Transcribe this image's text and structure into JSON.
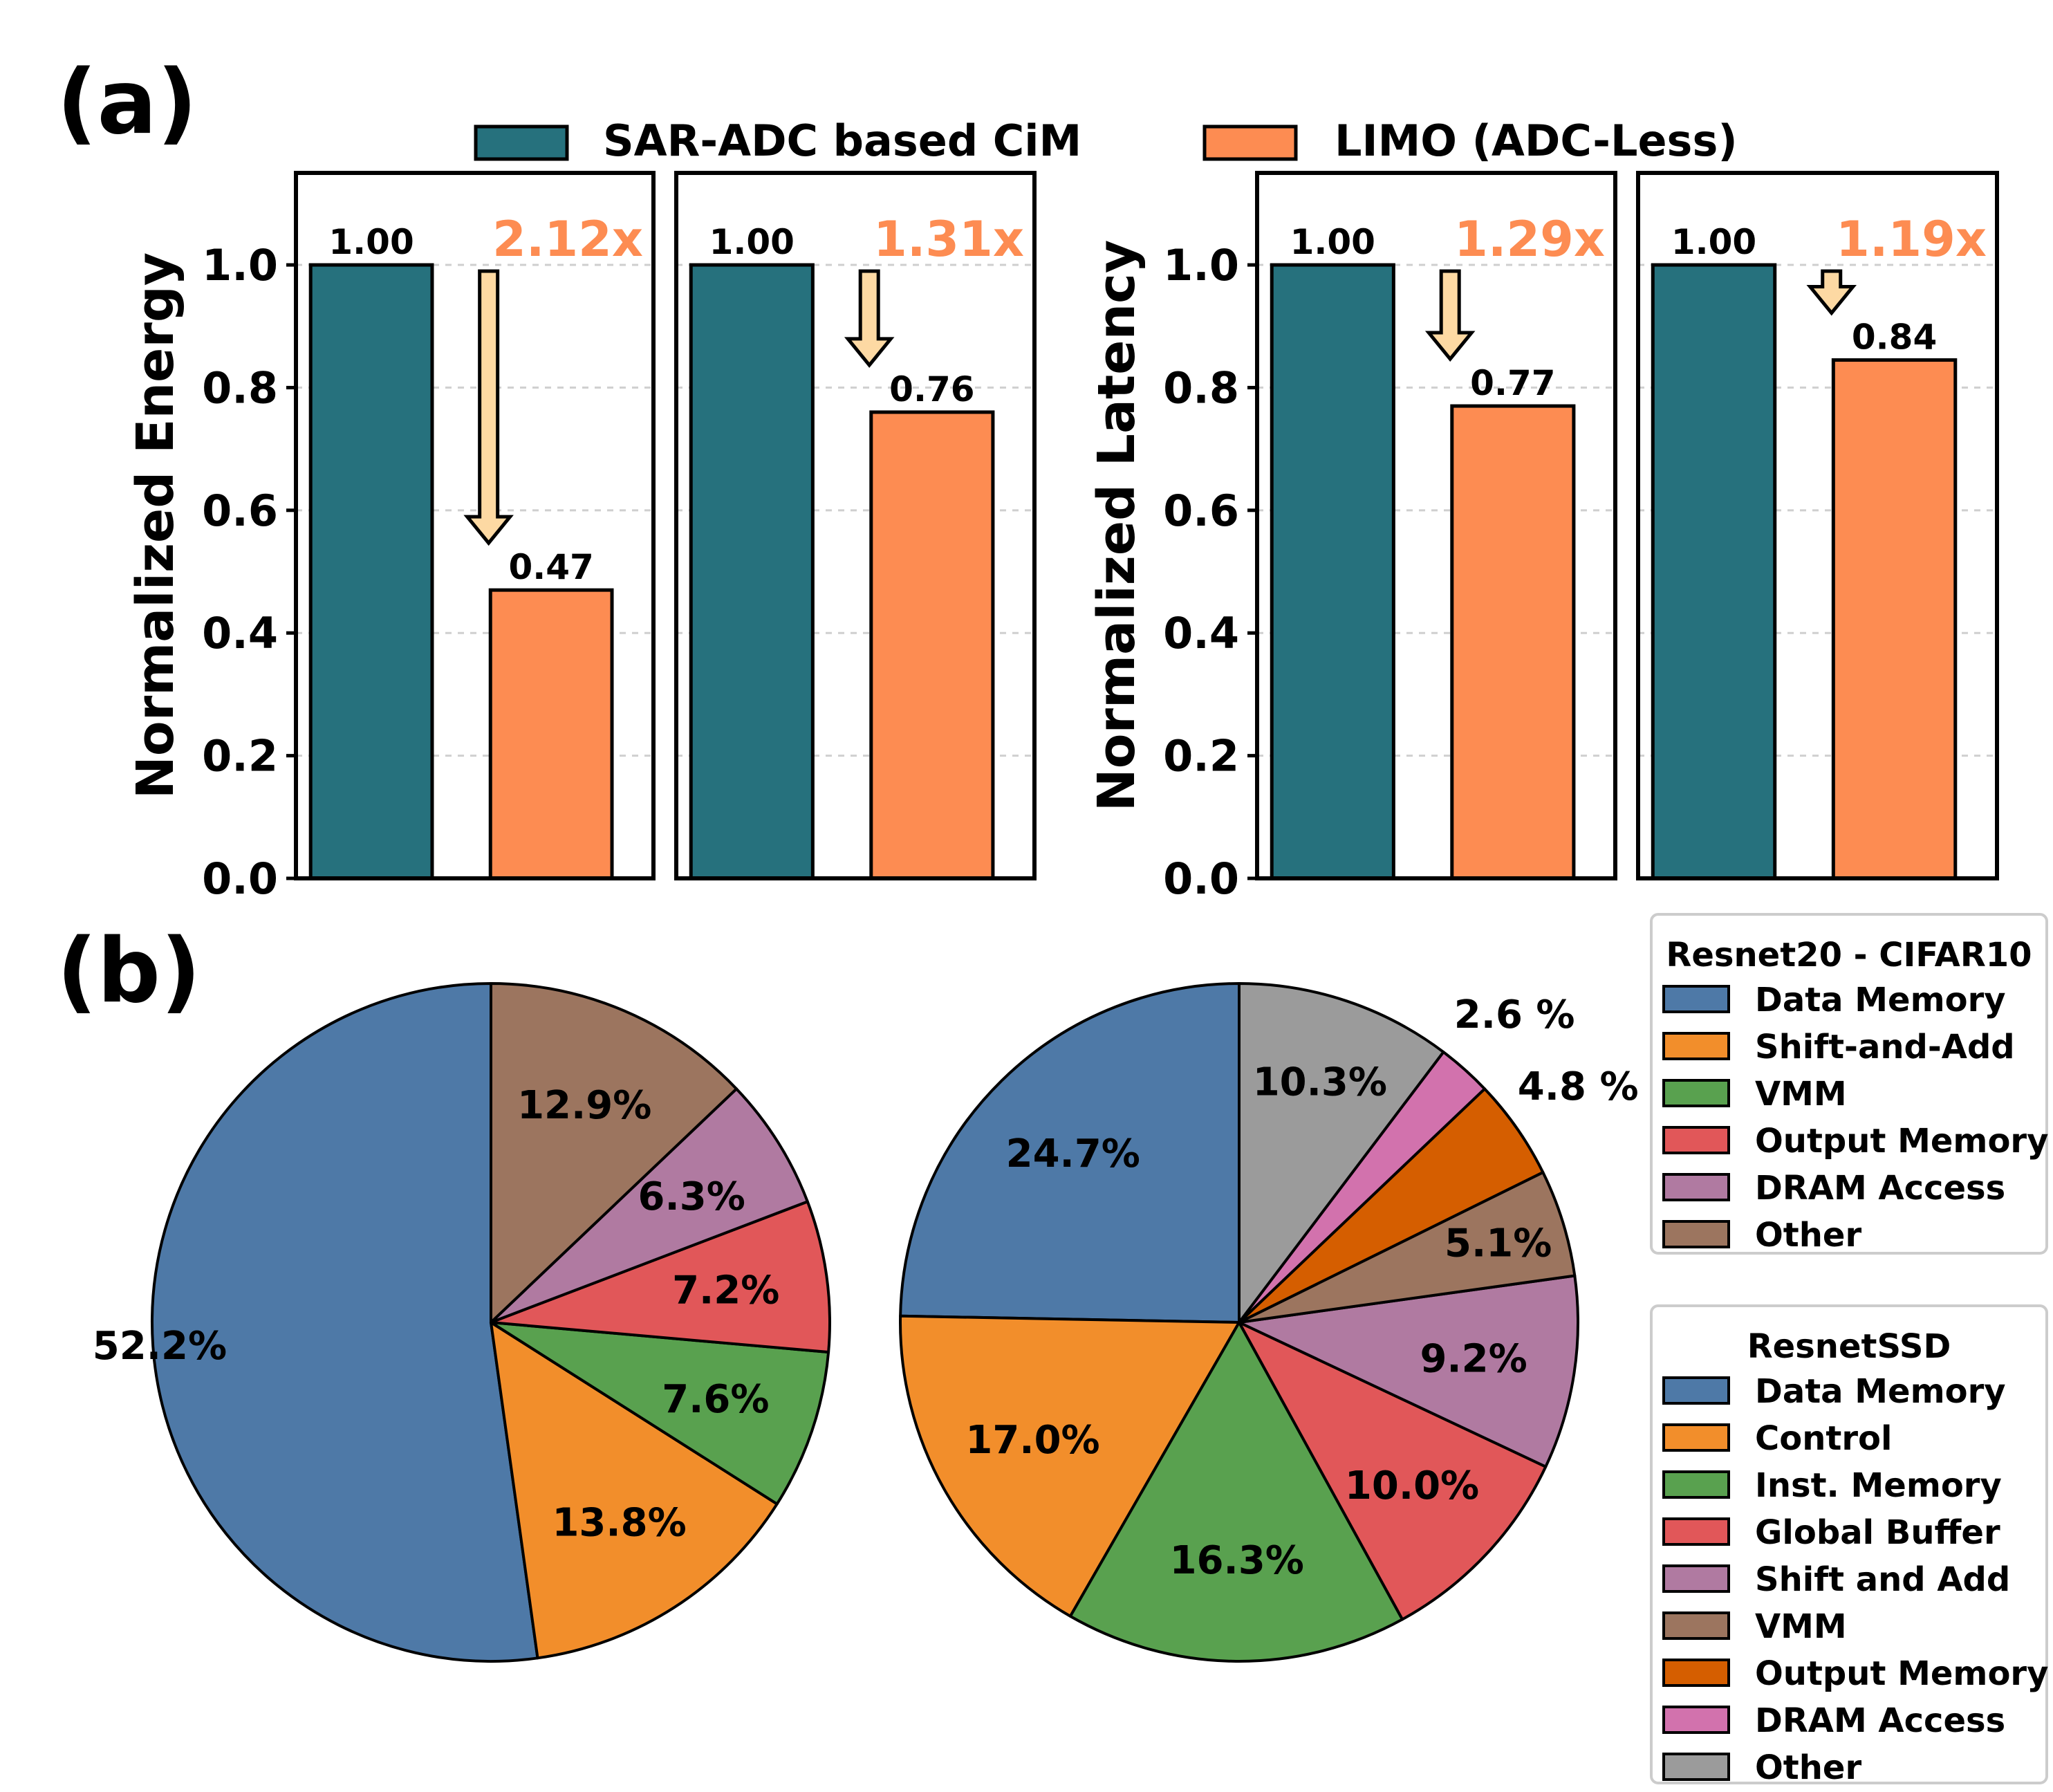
{
  "panel_labels": {
    "a": "(a)",
    "b": "(b)"
  },
  "legend_a": [
    {
      "label": "SAR-ADC based CiM",
      "color": "#26717d"
    },
    {
      "label": "LIMO (ADC-Less)",
      "color": "#fd8c52"
    }
  ],
  "chart_data": [
    {
      "type": "bar",
      "ylabel": "Normalized Energy",
      "ylim": [
        0,
        1.15
      ],
      "yticks": [
        "0.0",
        "0.2",
        "0.4",
        "0.6",
        "0.8",
        "1.0"
      ],
      "series": [
        {
          "name": "SAR-ADC based CiM",
          "values": [
            1.0
          ],
          "label": "1.00"
        },
        {
          "name": "LIMO (ADC-Less)",
          "values": [
            0.47
          ],
          "label": "0.47"
        }
      ],
      "improvement": "2.12x",
      "grid": "dashed-horizontal"
    },
    {
      "type": "bar",
      "ylabel": "",
      "ylim": [
        0,
        1.15
      ],
      "series": [
        {
          "name": "SAR-ADC based CiM",
          "values": [
            1.0
          ],
          "label": "1.00"
        },
        {
          "name": "LIMO (ADC-Less)",
          "values": [
            0.76
          ],
          "label": "0.76"
        }
      ],
      "improvement": "1.31x",
      "grid": "dashed-horizontal"
    },
    {
      "type": "bar",
      "ylabel": "Normalized Latency",
      "ylim": [
        0,
        1.15
      ],
      "yticks": [
        "0.0",
        "0.2",
        "0.4",
        "0.6",
        "0.8",
        "1.0"
      ],
      "series": [
        {
          "name": "SAR-ADC based CiM",
          "values": [
            1.0
          ],
          "label": "1.00"
        },
        {
          "name": "LIMO (ADC-Less)",
          "values": [
            0.77
          ],
          "label": "0.77"
        }
      ],
      "improvement": "1.29x",
      "grid": "dashed-horizontal"
    },
    {
      "type": "bar",
      "ylabel": "",
      "ylim": [
        0,
        1.15
      ],
      "series": [
        {
          "name": "SAR-ADC based CiM",
          "values": [
            1.0
          ],
          "label": "1.00"
        },
        {
          "name": "LIMO (ADC-Less)",
          "values": [
            0.845
          ],
          "label": "0.84"
        }
      ],
      "improvement": "1.19x",
      "grid": "dashed-horizontal"
    },
    {
      "type": "pie",
      "legend_title": "Resnet20 - CIFAR10",
      "legend_labels": [
        "Data Memory",
        "Shift-and-Add",
        "VMM",
        "Output Memory",
        "DRAM Access",
        "Other"
      ],
      "slices": [
        {
          "label": "Data Memory",
          "value": 52.2,
          "text": "52.2%",
          "color": "#4e79a7"
        },
        {
          "label": "Shift-and-Add",
          "value": 13.8,
          "text": "13.8%",
          "color": "#f28e2b"
        },
        {
          "label": "VMM",
          "value": 7.6,
          "text": "7.6%",
          "color": "#59a14f"
        },
        {
          "label": "Output Memory",
          "value": 7.2,
          "text": "7.2%",
          "color": "#e15759"
        },
        {
          "label": "DRAM Access",
          "value": 6.3,
          "text": "6.3%",
          "color": "#b07aa1"
        },
        {
          "label": "Other",
          "value": 12.9,
          "text": "12.9%",
          "color": "#9c755f"
        }
      ]
    },
    {
      "type": "pie",
      "legend_title": "ResnetSSD",
      "legend_labels": [
        "Data Memory",
        "Control",
        "Inst. Memory",
        "Global Buffer",
        "Shift and Add",
        "VMM",
        "Output Memory",
        "DRAM Access",
        "Other"
      ],
      "slices": [
        {
          "label": "Data Memory",
          "value": 24.7,
          "text": "24.7%",
          "color": "#4e79a7"
        },
        {
          "label": "Control",
          "value": 17.0,
          "text": "17.0%",
          "color": "#f28e2b"
        },
        {
          "label": "Inst. Memory",
          "value": 16.3,
          "text": "16.3%",
          "color": "#59a14f"
        },
        {
          "label": "Global Buffer",
          "value": 10.0,
          "text": "10.0%",
          "color": "#e15759"
        },
        {
          "label": "Shift and Add",
          "value": 9.2,
          "text": "9.2%",
          "color": "#b07aa1"
        },
        {
          "label": "VMM",
          "value": 5.1,
          "text": "5.1%",
          "color": "#9c755f"
        },
        {
          "label": "Output Memory",
          "value": 4.8,
          "text": "4.8 %",
          "color": "#d55e00"
        },
        {
          "label": "DRAM Access",
          "value": 2.6,
          "text": "2.6 %",
          "color": "#d272ad"
        },
        {
          "label": "Other",
          "value": 10.3,
          "text": "10.3%",
          "color": "#9b9b9b"
        }
      ]
    }
  ]
}
